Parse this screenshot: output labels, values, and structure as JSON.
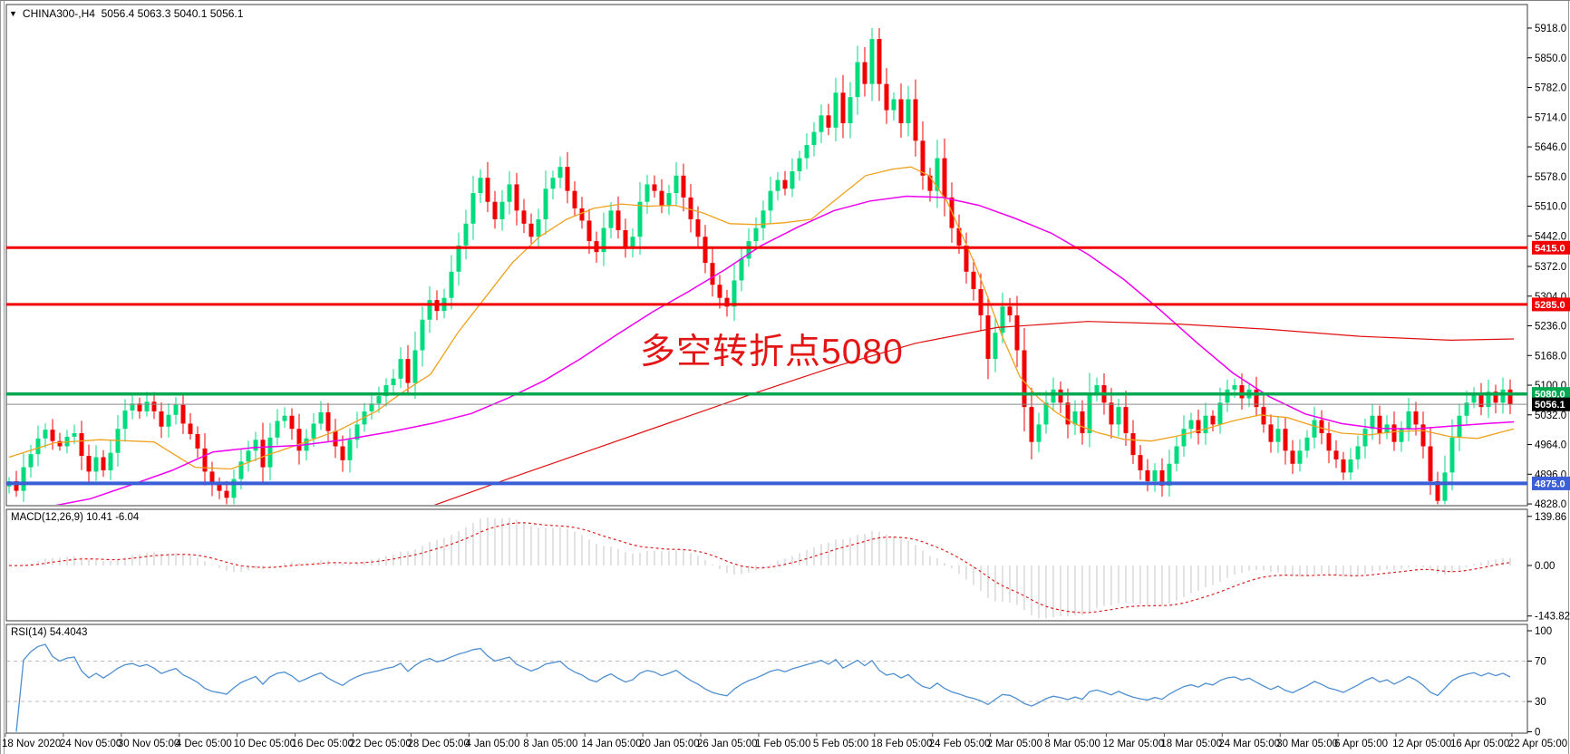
{
  "header": {
    "dropdown_icon": "▼",
    "symbol_period": "CHINA300-,H4",
    "ohlc_text": "5056.4 5063.3 5040.1 5056.1"
  },
  "annotation": {
    "text": "多空转折点5080",
    "color": "#e41515"
  },
  "price_axis": {
    "ticks": [
      5918,
      5850,
      5782,
      5714,
      5646,
      5578,
      5510,
      5442,
      5372,
      5304,
      5236,
      5168,
      5100,
      5032,
      4964,
      4896,
      4828
    ]
  },
  "levels": [
    {
      "value": 5415,
      "label": "5415.0",
      "color": "#f20000",
      "thickness": 3
    },
    {
      "value": 5285,
      "label": "5285.0",
      "color": "#f20000",
      "thickness": 3
    },
    {
      "value": 5080,
      "label": "5080.0",
      "color": "#00a94f",
      "thickness": 3.5
    },
    {
      "value": 4875,
      "label": "4875.0",
      "color": "#3a5fd6",
      "thickness": 4
    }
  ],
  "current_price": {
    "value": 5056.1,
    "label": "5056.1",
    "line_color": "#8a8a8a",
    "label_bg": "#000000"
  },
  "indicators": {
    "macd": {
      "label": "MACD(12,26,9)",
      "values_text": "10.41 -6.04",
      "fast": 12,
      "slow": 26,
      "signal": 9,
      "axis_values": [
        139.86,
        0.0,
        -143.82
      ],
      "axis_labels": [
        "139.86",
        "0.00",
        "-143.82"
      ],
      "bar_color": "#c4c4c4",
      "signal_color": "#e02020"
    },
    "rsi": {
      "label": "RSI(14)",
      "value_text": "54.4043",
      "period": 14,
      "axis_values": [
        100,
        70,
        30,
        0
      ],
      "levels": [
        70,
        30
      ],
      "line_color": "#4f8fd0",
      "level_color": "#bdbdbd"
    }
  },
  "time_axis": {
    "labels": [
      "18 Nov 2020",
      "24 Nov 05:00",
      "30 Nov 05:00",
      "4 Dec 05:00",
      "10 Dec 05:00",
      "16 Dec 05:00",
      "22 Dec 05:00",
      "28 Dec 05:00",
      "4 Jan 05:00",
      "8 Jan 05:00",
      "14 Jan 05:00",
      "20 Jan 05:00",
      "26 Jan 05:00",
      "1 Feb 05:00",
      "5 Feb 05:00",
      "18 Feb 05:00",
      "24 Feb 05:00",
      "2 Mar 05:00",
      "8 Mar 05:00",
      "12 Mar 05:00",
      "18 Mar 05:00",
      "24 Mar 05:00",
      "30 Mar 05:00",
      "6 Apr 05:00",
      "12 Apr 05:00",
      "16 Apr 05:00",
      "22 Apr 05:00"
    ]
  },
  "chart_data": {
    "type": "candlestick",
    "symbol": "CHINA300",
    "timeframe": "H4",
    "title": "CHINA300-,H4 5056.4 5063.3 5040.1 5056.1",
    "price_range": [
      4824,
      5952
    ],
    "high_cap": 5918,
    "low_cap": 4827,
    "up_color": "#00dc7d",
    "down_color": "#f20000",
    "closes": [
      4880,
      4858,
      4912,
      4942,
      4978,
      4998,
      4972,
      4960,
      4982,
      4990,
      4938,
      4902,
      4935,
      4905,
      4945,
      5000,
      5042,
      5058,
      5040,
      5062,
      5040,
      5005,
      5032,
      5055,
      5012,
      4988,
      4955,
      4902,
      4872,
      4858,
      4842,
      4885,
      4925,
      4950,
      4975,
      4912,
      4980,
      5018,
      5030,
      5000,
      4950,
      4978,
      5012,
      5038,
      4995,
      4960,
      4928,
      4975,
      5010,
      5040,
      5058,
      5075,
      5100,
      5115,
      5160,
      5105,
      5180,
      5250,
      5295,
      5270,
      5300,
      5360,
      5420,
      5470,
      5540,
      5575,
      5520,
      5480,
      5520,
      5560,
      5500,
      5470,
      5440,
      5480,
      5550,
      5575,
      5600,
      5545,
      5505,
      5477,
      5430,
      5405,
      5460,
      5500,
      5455,
      5415,
      5440,
      5520,
      5560,
      5545,
      5510,
      5540,
      5580,
      5530,
      5480,
      5440,
      5380,
      5330,
      5300,
      5280,
      5340,
      5390,
      5430,
      5460,
      5500,
      5545,
      5570,
      5550,
      5590,
      5620,
      5650,
      5680,
      5718,
      5690,
      5770,
      5700,
      5760,
      5840,
      5790,
      5893,
      5790,
      5730,
      5755,
      5700,
      5755,
      5660,
      5580,
      5545,
      5620,
      5530,
      5460,
      5420,
      5360,
      5320,
      5260,
      5160,
      5220,
      5280,
      5260,
      5180,
      5050,
      4970,
      5010,
      5060,
      5090,
      5060,
      5010,
      5040,
      4990,
      5080,
      5100,
      5060,
      5010,
      5050,
      4990,
      4940,
      4905,
      4880,
      4905,
      4870,
      4920,
      4960,
      5000,
      5020,
      4990,
      5030,
      5010,
      5060,
      5090,
      5100,
      5070,
      5090,
      5050,
      5010,
      4970,
      5000,
      4950,
      4920,
      4950,
      4980,
      5020,
      4990,
      4950,
      4930,
      4900,
      4930,
      4960,
      5000,
      5030,
      4990,
      5010,
      4970,
      5000,
      5040,
      5010,
      4960,
      4880,
      4835,
      4900,
      4980,
      5030,
      5060,
      5080,
      5050,
      5085,
      5060,
      5090,
      5056
    ],
    "ma_lines": [
      {
        "name": "ma-fast-orange",
        "color": "#f0a11e",
        "width": 1.3,
        "points": [
          [
            10,
            4935
          ],
          [
            60,
            4968
          ],
          [
            110,
            4975
          ],
          [
            170,
            4970
          ],
          [
            215,
            4912
          ],
          [
            255,
            4908
          ],
          [
            295,
            4940
          ],
          [
            335,
            4968
          ],
          [
            375,
            4998
          ],
          [
            415,
            5040
          ],
          [
            445,
            5085
          ],
          [
            475,
            5125
          ],
          [
            505,
            5220
          ],
          [
            535,
            5300
          ],
          [
            565,
            5380
          ],
          [
            595,
            5440
          ],
          [
            625,
            5480
          ],
          [
            655,
            5505
          ],
          [
            685,
            5515
          ],
          [
            715,
            5510
          ],
          [
            745,
            5512
          ],
          [
            775,
            5495
          ],
          [
            805,
            5470
          ],
          [
            835,
            5468
          ],
          [
            865,
            5472
          ],
          [
            895,
            5480
          ],
          [
            925,
            5530
          ],
          [
            955,
            5580
          ],
          [
            985,
            5595
          ],
          [
            1005,
            5600
          ],
          [
            1025,
            5580
          ],
          [
            1045,
            5520
          ],
          [
            1060,
            5450
          ],
          [
            1075,
            5380
          ],
          [
            1090,
            5300
          ],
          [
            1105,
            5215
          ],
          [
            1125,
            5120
          ],
          [
            1145,
            5072
          ],
          [
            1165,
            5038
          ],
          [
            1185,
            5012
          ],
          [
            1210,
            4992
          ],
          [
            1240,
            4976
          ],
          [
            1270,
            4972
          ],
          [
            1300,
            4984
          ],
          [
            1330,
            5000
          ],
          [
            1360,
            5018
          ],
          [
            1390,
            5032
          ],
          [
            1420,
            5026
          ],
          [
            1450,
            5006
          ],
          [
            1480,
            4990
          ],
          [
            1510,
            4986
          ],
          [
            1540,
            4994
          ],
          [
            1570,
            4996
          ],
          [
            1600,
            4982
          ],
          [
            1630,
            4978
          ],
          [
            1655,
            4992
          ],
          [
            1670,
            5000
          ]
        ]
      },
      {
        "name": "ma-slow-magenta",
        "color": "#f000f0",
        "width": 1.5,
        "points": [
          [
            10,
            4800
          ],
          [
            55,
            4822
          ],
          [
            100,
            4840
          ],
          [
            145,
            4872
          ],
          [
            190,
            4905
          ],
          [
            235,
            4947
          ],
          [
            280,
            4957
          ],
          [
            330,
            4962
          ],
          [
            380,
            4975
          ],
          [
            430,
            4993
          ],
          [
            480,
            5014
          ],
          [
            520,
            5035
          ],
          [
            560,
            5070
          ],
          [
            600,
            5110
          ],
          [
            640,
            5160
          ],
          [
            680,
            5215
          ],
          [
            720,
            5268
          ],
          [
            760,
            5315
          ],
          [
            800,
            5365
          ],
          [
            840,
            5420
          ],
          [
            880,
            5462
          ],
          [
            920,
            5500
          ],
          [
            960,
            5522
          ],
          [
            1000,
            5533
          ],
          [
            1040,
            5530
          ],
          [
            1080,
            5512
          ],
          [
            1120,
            5482
          ],
          [
            1160,
            5448
          ],
          [
            1200,
            5400
          ],
          [
            1240,
            5342
          ],
          [
            1280,
            5272
          ],
          [
            1320,
            5198
          ],
          [
            1360,
            5128
          ],
          [
            1400,
            5074
          ],
          [
            1440,
            5034
          ],
          [
            1480,
            5012
          ],
          [
            1520,
            5001
          ],
          [
            1560,
            5000
          ],
          [
            1600,
            5006
          ],
          [
            1640,
            5012
          ],
          [
            1670,
            5016
          ]
        ]
      },
      {
        "name": "ma-long-red",
        "color": "#e01010",
        "width": 1.2,
        "points": [
          [
            475,
            4822
          ],
          [
            560,
            4885
          ],
          [
            650,
            4950
          ],
          [
            740,
            5015
          ],
          [
            830,
            5080
          ],
          [
            920,
            5142
          ],
          [
            1010,
            5196
          ],
          [
            1100,
            5232
          ],
          [
            1200,
            5246
          ],
          [
            1300,
            5240
          ],
          [
            1400,
            5228
          ],
          [
            1500,
            5212
          ],
          [
            1600,
            5203
          ],
          [
            1670,
            5206
          ]
        ]
      }
    ]
  }
}
